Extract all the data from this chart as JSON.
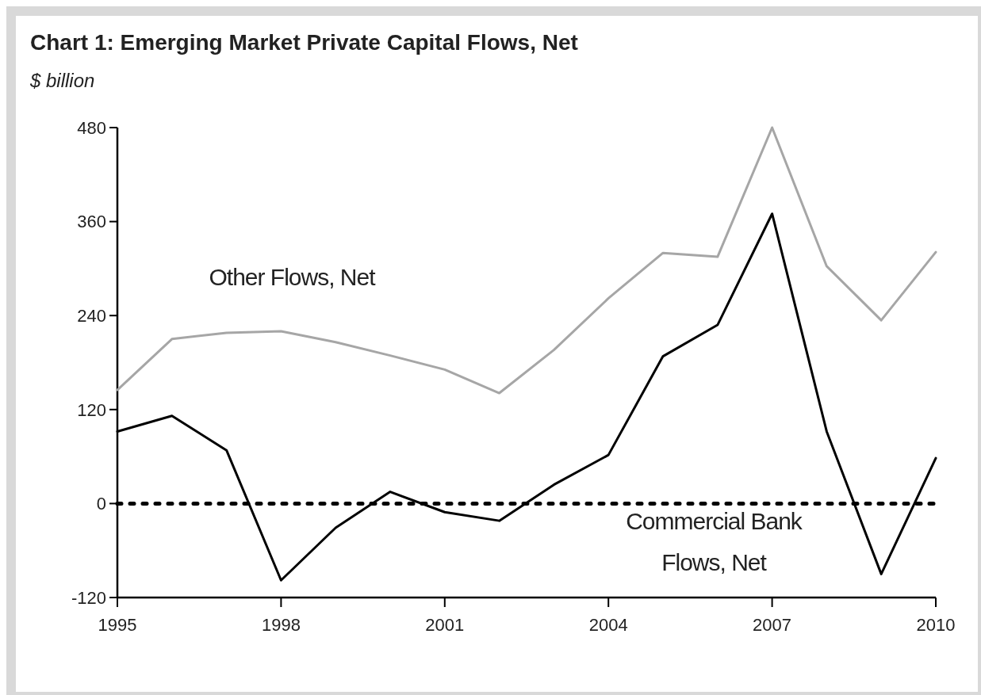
{
  "chart_data": {
    "type": "line",
    "title": "Chart 1: Emerging Market Private Capital Flows, Net",
    "subtitle": "$ billion",
    "x": [
      1995,
      1996,
      1997,
      1998,
      1999,
      2000,
      2001,
      2002,
      2003,
      2004,
      2005,
      2006,
      2007,
      2008,
      2009,
      2010
    ],
    "series": [
      {
        "name": "Other Flows, Net",
        "color": "#a6a6a6",
        "values": [
          145,
          210,
          218,
          220,
          206,
          189,
          171,
          141,
          196,
          262,
          320,
          315,
          480,
          303,
          234,
          321
        ]
      },
      {
        "name": "Commercial Bank Flows, Net",
        "color": "#000000",
        "values": [
          92,
          112,
          68,
          -98,
          -31,
          15,
          -11,
          -22,
          24,
          62,
          188,
          228,
          370,
          92,
          -90,
          58
        ]
      }
    ],
    "xlim": [
      1995,
      2010
    ],
    "xticks": [
      1995,
      1998,
      2001,
      2004,
      2007,
      2010
    ],
    "ylim": [
      -120,
      480
    ],
    "yticks": [
      -120,
      0,
      120,
      240,
      360,
      480
    ],
    "ref_lines": [
      {
        "axis": "y",
        "value": 0,
        "color": "#000000",
        "line_style": "dotted"
      }
    ],
    "grid": false,
    "marker": "none",
    "line_style": "solid"
  }
}
